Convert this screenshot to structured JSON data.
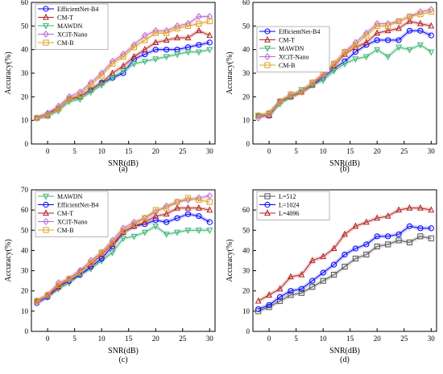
{
  "chart_data": [
    {
      "type": "line",
      "caption": "(a)",
      "xlabel": "SNR(dB)",
      "ylabel": "Accuracy(%)",
      "xticks": [
        0,
        5,
        10,
        15,
        20,
        25,
        30
      ],
      "yticks": [
        0,
        10,
        20,
        30,
        40,
        50,
        60
      ],
      "xlim": [
        -3,
        31
      ],
      "ylim": [
        0,
        60
      ],
      "grid": false,
      "legend_position": "top-left",
      "x": [
        -2,
        0,
        2,
        4,
        6,
        8,
        10,
        12,
        14,
        16,
        18,
        20,
        22,
        24,
        26,
        28,
        30
      ],
      "series": [
        {
          "name": "EfficientNet-B4",
          "color": "#0000ff",
          "marker": "circle",
          "values": [
            11,
            12,
            15,
            19,
            20,
            23,
            26,
            28,
            30,
            36,
            38,
            40,
            40,
            40,
            41,
            42,
            43
          ]
        },
        {
          "name": "CM-T",
          "color": "#b22222",
          "marker": "triangle-up",
          "values": [
            11,
            13,
            15,
            19,
            20,
            23,
            26,
            30,
            33,
            37,
            40,
            43,
            44,
            45,
            45,
            48,
            46
          ]
        },
        {
          "name": "MAWDN",
          "color": "#3cb371",
          "marker": "triangle-down",
          "values": [
            11,
            12,
            14,
            18,
            19,
            22,
            25,
            28,
            31,
            34,
            35,
            36,
            37,
            38,
            39,
            39,
            40
          ]
        },
        {
          "name": "XCiT-Nano",
          "color": "#bb66dd",
          "marker": "diamond",
          "values": [
            11,
            13,
            16,
            20,
            22,
            26,
            30,
            35,
            38,
            42,
            46,
            48,
            48,
            50,
            51,
            54,
            54
          ]
        },
        {
          "name": "CM-B",
          "color": "#e0a020",
          "marker": "square",
          "values": [
            11,
            12,
            15,
            19,
            21,
            25,
            29,
            34,
            37,
            41,
            44,
            47,
            47,
            49,
            50,
            51,
            52
          ]
        }
      ]
    },
    {
      "type": "line",
      "caption": "(b)",
      "xlabel": "SNR(dB)",
      "ylabel": "Accuracy(%)",
      "xticks": [
        0,
        5,
        10,
        15,
        20,
        25,
        30
      ],
      "yticks": [
        0,
        10,
        20,
        30,
        40,
        50,
        60
      ],
      "xlim": [
        -3,
        31
      ],
      "ylim": [
        0,
        60
      ],
      "grid": false,
      "legend_position": "left",
      "x": [
        -2,
        0,
        2,
        4,
        6,
        8,
        10,
        12,
        14,
        16,
        18,
        20,
        22,
        24,
        26,
        28,
        30
      ],
      "series": [
        {
          "name": "EfficientNet-B4",
          "color": "#0000ff",
          "marker": "circle",
          "values": [
            12,
            12,
            18,
            20,
            22,
            25,
            28,
            32,
            35,
            39,
            42,
            44,
            44,
            44,
            48,
            48,
            46
          ]
        },
        {
          "name": "CM-T",
          "color": "#b22222",
          "marker": "triangle-up",
          "values": [
            12,
            12,
            18,
            20,
            22,
            25,
            29,
            33,
            38,
            41,
            43,
            47,
            48,
            49,
            52,
            51,
            50
          ]
        },
        {
          "name": "MAWDN",
          "color": "#3cb371",
          "marker": "triangle-down",
          "values": [
            12,
            13,
            17,
            20,
            23,
            25,
            27,
            31,
            34,
            36,
            37,
            40,
            37,
            41,
            40,
            42,
            39
          ]
        },
        {
          "name": "XCiT-Nano",
          "color": "#bb66dd",
          "marker": "diamond",
          "values": [
            11,
            13,
            18,
            21,
            22,
            26,
            29,
            34,
            39,
            43,
            47,
            51,
            51,
            52,
            54,
            56,
            57
          ]
        },
        {
          "name": "CM-B",
          "color": "#e0a020",
          "marker": "square",
          "values": [
            12,
            13,
            18,
            21,
            22,
            26,
            30,
            34,
            39,
            42,
            46,
            50,
            50,
            52,
            54,
            55,
            56
          ]
        }
      ]
    },
    {
      "type": "line",
      "caption": "(c)",
      "xlabel": "SNR(dB)",
      "ylabel": "Accuracy(%)",
      "xticks": [
        0,
        5,
        10,
        15,
        20,
        25,
        30
      ],
      "yticks": [
        0,
        10,
        20,
        30,
        40,
        50,
        60,
        70
      ],
      "xlim": [
        -3,
        31
      ],
      "ylim": [
        0,
        70
      ],
      "grid": false,
      "legend_position": "top-left",
      "x": [
        -2,
        0,
        2,
        4,
        6,
        8,
        10,
        12,
        14,
        16,
        18,
        20,
        22,
        24,
        26,
        28,
        30
      ],
      "series": [
        {
          "name": "MAWDN",
          "color": "#3cb371",
          "marker": "triangle-down",
          "values": [
            15,
            17,
            21,
            24,
            28,
            31,
            35,
            39,
            46,
            47,
            49,
            52,
            48,
            49,
            50,
            50,
            50
          ]
        },
        {
          "name": "EfficientNet-B4",
          "color": "#0000ff",
          "marker": "circle",
          "values": [
            14,
            17,
            22,
            25,
            28,
            32,
            36,
            42,
            49,
            52,
            53,
            55,
            54,
            56,
            58,
            57,
            54
          ]
        },
        {
          "name": "CM-T",
          "color": "#b22222",
          "marker": "triangle-up",
          "values": [
            15,
            18,
            22,
            26,
            30,
            33,
            38,
            43,
            49,
            52,
            54,
            57,
            58,
            61,
            61,
            61,
            60
          ]
        },
        {
          "name": "XCiT-Nano",
          "color": "#bb66dd",
          "marker": "diamond",
          "values": [
            14,
            18,
            24,
            26,
            30,
            35,
            39,
            45,
            51,
            54,
            56,
            59,
            62,
            64,
            65,
            66,
            67
          ]
        },
        {
          "name": "CM-B",
          "color": "#e0a020",
          "marker": "square",
          "values": [
            15,
            18,
            23,
            26,
            29,
            34,
            39,
            44,
            50,
            53,
            56,
            60,
            61,
            64,
            66,
            65,
            64
          ]
        }
      ]
    },
    {
      "type": "line",
      "caption": "(d)",
      "xlabel": "SNR(dB)",
      "ylabel": "Accuracy(%)",
      "xticks": [
        0,
        5,
        10,
        15,
        20,
        25,
        30
      ],
      "yticks": [
        0,
        10,
        20,
        30,
        40,
        50,
        60
      ],
      "xlim": [
        -3,
        31
      ],
      "ylim": [
        0,
        70
      ],
      "grid": false,
      "legend_position": "top-left",
      "x": [
        -2,
        0,
        2,
        4,
        6,
        8,
        10,
        12,
        14,
        16,
        18,
        20,
        22,
        24,
        26,
        28,
        30
      ],
      "series": [
        {
          "name": "L=512",
          "color": "#555555",
          "marker": "square",
          "values": [
            10,
            12,
            15,
            18,
            19,
            22,
            25,
            28,
            32,
            36,
            38,
            42,
            43,
            45,
            44,
            47,
            46
          ]
        },
        {
          "name": "L=1024",
          "color": "#0000ff",
          "marker": "circle",
          "values": [
            11,
            13,
            17,
            20,
            21,
            25,
            29,
            33,
            38,
            41,
            43,
            47,
            47,
            48,
            52,
            51,
            51
          ]
        },
        {
          "name": "L=4096",
          "color": "#b22222",
          "marker": "triangle-up",
          "values": [
            15,
            18,
            21,
            27,
            28,
            35,
            37,
            41,
            48,
            52,
            54,
            56,
            57,
            60,
            61,
            61,
            60
          ]
        }
      ]
    }
  ]
}
